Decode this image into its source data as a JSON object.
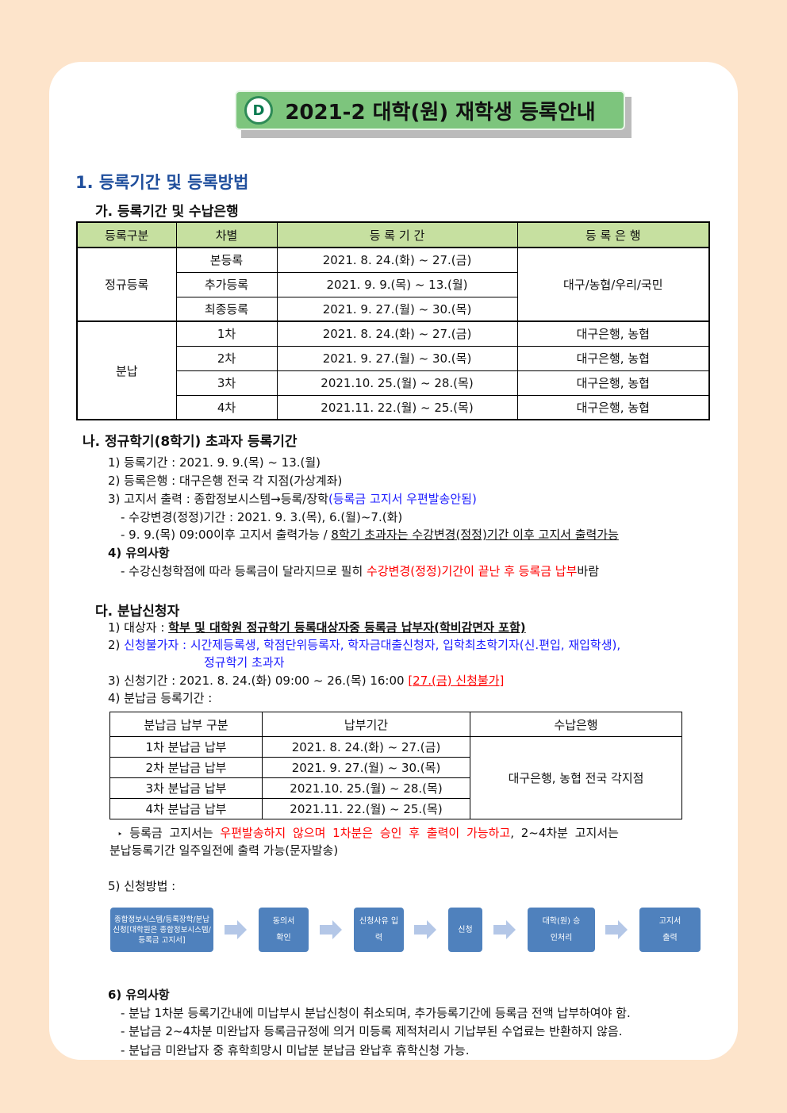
{
  "title": "2021-2 대학(원) 재학생 등록안내",
  "section1": {
    "heading": "1. 등록기간 및 등록방법",
    "sub_a": "가. 등록기간 및 수납은행",
    "table": {
      "headers": [
        "등록구분",
        "차별",
        "등 록 기 간",
        "등 록 은 행"
      ],
      "group1": {
        "label": "정규등록",
        "bank": "대구/농협/우리/국민",
        "rows": [
          [
            "본등록",
            "2021. 8. 24.(화) ~ 27.(금)"
          ],
          [
            "추가등록",
            "2021. 9. 9.(목) ~ 13.(월)"
          ],
          [
            "최종등록",
            "2021. 9. 27.(월) ~ 30.(목)"
          ]
        ]
      },
      "group2": {
        "label": "분납",
        "rows": [
          [
            "1차",
            "2021. 8. 24.(화) ~ 27.(금)",
            "대구은행, 농협"
          ],
          [
            "2차",
            "2021. 9. 27.(월) ~ 30.(목)",
            "대구은행, 농협"
          ],
          [
            "3차",
            "2021.10. 25.(월) ~ 28.(목)",
            "대구은행, 농협"
          ],
          [
            "4차",
            "2021.11. 22.(월) ~ 25.(목)",
            "대구은행, 농협"
          ]
        ]
      }
    }
  },
  "section_b": {
    "heading": "나. 정규학기(8학기) 초과자 등록기간",
    "l1": "1) 등록기간 : 2021. 9. 9.(목) ~ 13.(월)",
    "l2": "2) 등록은행 : 대구은행 전국 각 지점(가상계좌)",
    "l3a": "3) 고지서 출력 : 종합정보시스템→등록/장학",
    "l3b": "(등록금 고지서 우편발송안됨)",
    "l4": "- 수강변경(정정)기간 : 2021. 9. 3.(목), 6.(월)~7.(화)",
    "l5a": "- 9. 9.(목) 09:00이후 고지서 출력가능 / ",
    "l5b": "8학기 초과자는 수강변경(정정)기간 이후 고지서 출력가능",
    "l6": "4) 유의사항",
    "l7a": "- 수강신청학점에 따라 등록금이 달라지므로 필히 ",
    "l7b": "수강변경(정정)기간이 끝난 후 등록금 납부",
    "l7c": "바람"
  },
  "section_c": {
    "heading": "다. 분납신청자",
    "l1a": "1) 대상자 : ",
    "l1b": "학부 및 대학원 정규학기 등록대상자중 등록금 납부자(학비감면자 포함)",
    "l2a": "2) ",
    "l2b": "신청불가자 : 시간제등록생, 학점단위등록자, 학자금대출신청자, 입학최초학기자(신.편입, 재입학생),",
    "l2c": "정규학기 초과자",
    "l3a": "3) 신청기간 : 2021. 8. 24.(화) 09:00 ~ 26.(목) 16:00 ",
    "l3b": "[27.(금) 신청불가]",
    "l4": "4) 분납금 등록기간 :",
    "table": {
      "headers": [
        "분납금 납부 구분",
        "납부기간",
        "수납은행"
      ],
      "bank": "대구은행, 농협 전국 각지점",
      "rows": [
        [
          "1차 분납금 납부",
          "2021. 8. 24.(화) ~ 27.(금)"
        ],
        [
          "2차 분납금 납부",
          "2021. 9. 27.(월) ~ 30.(목)"
        ],
        [
          "3차 분납금 납부",
          "2021.10. 25.(월) ~ 28.(목)"
        ],
        [
          "4차 분납금 납부",
          "2021.11. 22.(월) ~ 25.(목)"
        ]
      ]
    },
    "note_bullet": "‣",
    "note_a": "등록금 고지서는 ",
    "note_b": "우편발송하지 않으며 1차분은 승인 후 출력이 가능하고",
    "note_c": ", 2~4차분 고지서는",
    "note_d": "분납등록기간 일주일전에 출력 가능(문자발송)",
    "l5": "5) 신청방법 :",
    "flow": [
      "종합정보시스템/등록장학/분납신청[대학원은 종합정보시스템/등록금 고지서]",
      "동의서 확인",
      "신청사유 입력",
      "신청",
      "대학(원) 승인처리",
      "고지서 출력"
    ],
    "l6": "6) 유의사항",
    "n1": "- 분납 1차분 등록기간내에 미납부시 분납신청이 취소되며, 추가등록기간에 등록금 전액 납부하여야 함.",
    "n2": "- 분납금 2~4차분 미완납자 등록금규정에 의거 미등록 제적처리시 기납부된 수업료는 반환하지 않음.",
    "n3": "- 분납금 미완납자 중 휴학희망시 미납분 분납금 완납후 휴학신청 가능."
  },
  "colors": {
    "background": "#fde4cb",
    "title_bar": "#7dc57d",
    "table_header": "#c6e0a0",
    "heading_blue": "#1f4e9c",
    "flow_box": "#4f81bd",
    "flow_arrow": "#b4c7e7",
    "highlight_red": "#ff0000",
    "highlight_blue": "#1a1aff"
  }
}
